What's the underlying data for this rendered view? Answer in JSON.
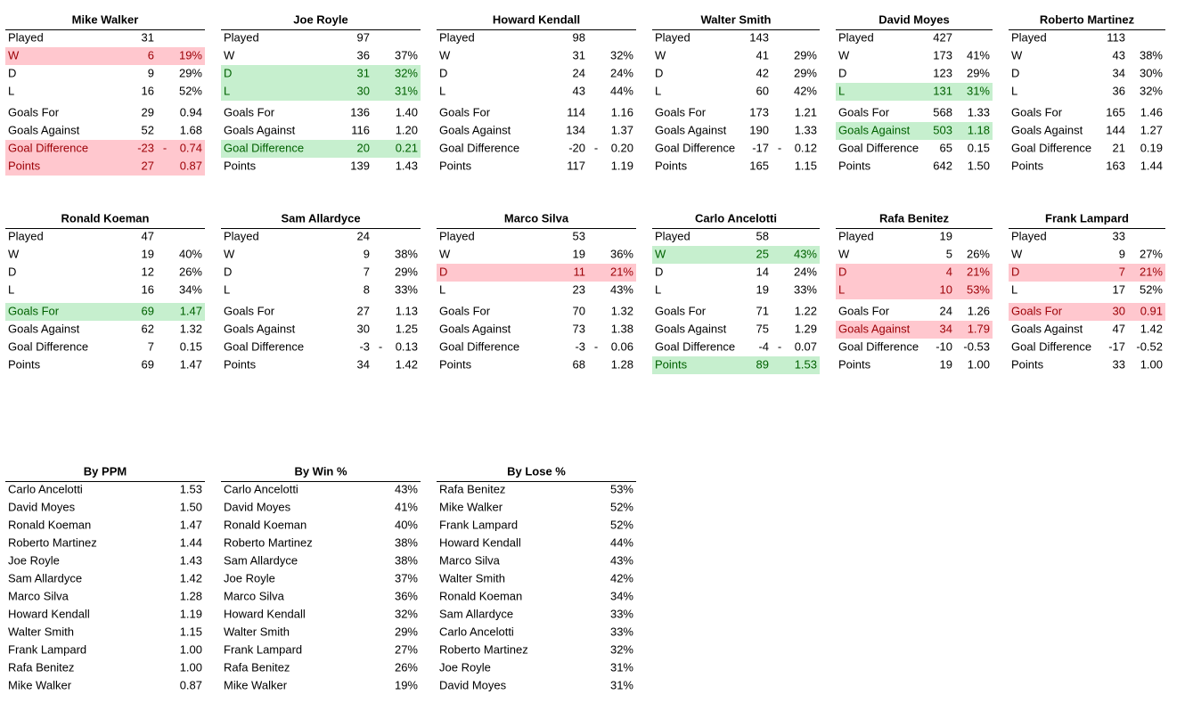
{
  "managers": [
    {
      "name": "Mike Walker",
      "rows": [
        {
          "cells": [
            "Played",
            "31"
          ]
        },
        {
          "cells": [
            "W",
            "6",
            "19%"
          ],
          "fill": "#ffc7ce",
          "text_color": "#9c0006"
        },
        {
          "cells": [
            "D",
            "9",
            "29%"
          ]
        },
        {
          "cells": [
            "L",
            "16",
            "52%"
          ]
        },
        {
          "cells": [
            "Goals For",
            "29",
            "0.94"
          ]
        },
        {
          "cells": [
            "Goals Against",
            "52",
            "1.68"
          ]
        },
        {
          "cells": [
            "Goal Difference",
            "-23",
            "-    0.74"
          ],
          "fill": "#ffc7ce",
          "text_color": "#9c0006"
        },
        {
          "cells": [
            "Points",
            "27",
            "0.87"
          ],
          "fill": "#ffc7ce",
          "text_color": "#9c0006"
        }
      ]
    },
    {
      "name": "Joe Royle",
      "rows": [
        {
          "cells": [
            "Played",
            "97"
          ]
        },
        {
          "cells": [
            "W",
            "36",
            "37%"
          ]
        },
        {
          "cells": [
            "D",
            "31",
            "32%"
          ],
          "fill": "#c6efce",
          "text_color": "#006100"
        },
        {
          "cells": [
            "L",
            "30",
            "31%"
          ],
          "fill": "#c6efce",
          "text_color": "#006100"
        },
        {
          "cells": [
            "Goals For",
            "136",
            "1.40"
          ]
        },
        {
          "cells": [
            "Goals Against",
            "116",
            "1.20"
          ]
        },
        {
          "cells": [
            "Goal Difference",
            "20",
            "0.21"
          ],
          "fill": "#c6efce",
          "text_color": "#006100"
        },
        {
          "cells": [
            "Points",
            "139",
            "1.43"
          ]
        }
      ]
    },
    {
      "name": "Howard Kendall",
      "rows": [
        {
          "cells": [
            "Played",
            "98"
          ]
        },
        {
          "cells": [
            "W",
            "31",
            "32%"
          ]
        },
        {
          "cells": [
            "D",
            "24",
            "24%"
          ]
        },
        {
          "cells": [
            "L",
            "43",
            "44%"
          ]
        },
        {
          "cells": [
            "Goals For",
            "114",
            "1.16"
          ]
        },
        {
          "cells": [
            "Goals Against",
            "134",
            "1.37"
          ]
        },
        {
          "cells": [
            "Goal Difference",
            "-20",
            "-    0.20"
          ]
        },
        {
          "cells": [
            "Points",
            "117",
            "1.19"
          ]
        }
      ]
    },
    {
      "name": "Walter Smith",
      "rows": [
        {
          "cells": [
            "Played",
            "143"
          ]
        },
        {
          "cells": [
            "W",
            "41",
            "29%"
          ]
        },
        {
          "cells": [
            "D",
            "42",
            "29%"
          ]
        },
        {
          "cells": [
            "L",
            "60",
            "42%"
          ]
        },
        {
          "cells": [
            "Goals For",
            "173",
            "1.21"
          ]
        },
        {
          "cells": [
            "Goals Against",
            "190",
            "1.33"
          ]
        },
        {
          "cells": [
            "Goal Difference",
            "-17",
            "-    0.12"
          ]
        },
        {
          "cells": [
            "Points",
            "165",
            "1.15"
          ]
        }
      ]
    },
    {
      "name": "David Moyes",
      "rows": [
        {
          "cells": [
            "Played",
            "427"
          ]
        },
        {
          "cells": [
            "W",
            "173",
            "41%"
          ]
        },
        {
          "cells": [
            "D",
            "123",
            "29%"
          ]
        },
        {
          "cells": [
            "L",
            "131",
            "31%"
          ],
          "fill": "#c6efce",
          "text_color": "#006100"
        },
        {
          "cells": [
            "Goals For",
            "568",
            "1.33"
          ]
        },
        {
          "cells": [
            "Goals Against",
            "503",
            "1.18"
          ],
          "fill": "#c6efce",
          "text_color": "#006100"
        },
        {
          "cells": [
            "Goal Difference",
            "65",
            "0.15"
          ]
        },
        {
          "cells": [
            "Points",
            "642",
            "1.50"
          ]
        }
      ]
    },
    {
      "name": "Roberto Martinez",
      "rows": [
        {
          "cells": [
            "Played",
            "113"
          ]
        },
        {
          "cells": [
            "W",
            "43",
            "38%"
          ]
        },
        {
          "cells": [
            "D",
            "34",
            "30%"
          ]
        },
        {
          "cells": [
            "L",
            "36",
            "32%"
          ]
        },
        {
          "cells": [
            "Goals For",
            "165",
            "1.46"
          ]
        },
        {
          "cells": [
            "Goals Against",
            "144",
            "1.27"
          ]
        },
        {
          "cells": [
            "Goal Difference",
            "21",
            "0.19"
          ]
        },
        {
          "cells": [
            "Points",
            "163",
            "1.44"
          ]
        }
      ]
    },
    {
      "name": "Ronald Koeman",
      "rows": [
        {
          "cells": [
            "Played",
            "47"
          ]
        },
        {
          "cells": [
            "W",
            "19",
            "40%"
          ]
        },
        {
          "cells": [
            "D",
            "12",
            "26%"
          ]
        },
        {
          "cells": [
            "L",
            "16",
            "34%"
          ]
        },
        {
          "cells": [
            "Goals For",
            "69",
            "1.47"
          ],
          "fill": "#c6efce",
          "text_color": "#006100"
        },
        {
          "cells": [
            "Goals Against",
            "62",
            "1.32"
          ]
        },
        {
          "cells": [
            "Goal Difference",
            "7",
            "0.15"
          ]
        },
        {
          "cells": [
            "Points",
            "69",
            "1.47"
          ]
        }
      ]
    },
    {
      "name": "Sam Allardyce",
      "rows": [
        {
          "cells": [
            "Played",
            "24"
          ]
        },
        {
          "cells": [
            "W",
            "9",
            "38%"
          ]
        },
        {
          "cells": [
            "D",
            "7",
            "29%"
          ]
        },
        {
          "cells": [
            "L",
            "8",
            "33%"
          ]
        },
        {
          "cells": [
            "Goals For",
            "27",
            "1.13"
          ]
        },
        {
          "cells": [
            "Goals Against",
            "30",
            "1.25"
          ]
        },
        {
          "cells": [
            "Goal Difference",
            "-3",
            "-    0.13"
          ]
        },
        {
          "cells": [
            "Points",
            "34",
            "1.42"
          ]
        }
      ]
    },
    {
      "name": "Marco Silva",
      "rows": [
        {
          "cells": [
            "Played",
            "53"
          ]
        },
        {
          "cells": [
            "W",
            "19",
            "36%"
          ]
        },
        {
          "cells": [
            "D",
            "11",
            "21%"
          ],
          "fill": "#ffc7ce",
          "text_color": "#9c0006"
        },
        {
          "cells": [
            "L",
            "23",
            "43%"
          ]
        },
        {
          "cells": [
            "Goals For",
            "70",
            "1.32"
          ]
        },
        {
          "cells": [
            "Goals Against",
            "73",
            "1.38"
          ]
        },
        {
          "cells": [
            "Goal Difference",
            "-3",
            "-    0.06"
          ]
        },
        {
          "cells": [
            "Points",
            "68",
            "1.28"
          ]
        }
      ]
    },
    {
      "name": "Carlo Ancelotti",
      "rows": [
        {
          "cells": [
            "Played",
            "58"
          ]
        },
        {
          "cells": [
            "W",
            "25",
            "43%"
          ],
          "fill": "#c6efce",
          "text_color": "#006100"
        },
        {
          "cells": [
            "D",
            "14",
            "24%"
          ]
        },
        {
          "cells": [
            "L",
            "19",
            "33%"
          ]
        },
        {
          "cells": [
            "Goals For",
            "71",
            "1.22"
          ]
        },
        {
          "cells": [
            "Goals Against",
            "75",
            "1.29"
          ]
        },
        {
          "cells": [
            "Goal Difference",
            "-4",
            "-    0.07"
          ]
        },
        {
          "cells": [
            "Points",
            "89",
            "1.53"
          ],
          "fill": "#c6efce",
          "text_color": "#006100"
        }
      ]
    },
    {
      "name": "Rafa Benitez",
      "rows": [
        {
          "cells": [
            "Played",
            "19"
          ]
        },
        {
          "cells": [
            "W",
            "5",
            "26%"
          ]
        },
        {
          "cells": [
            "D",
            "4",
            "21%"
          ],
          "fill": "#ffc7ce",
          "text_color": "#9c0006"
        },
        {
          "cells": [
            "L",
            "10",
            "53%"
          ],
          "fill": "#ffc7ce",
          "text_color": "#9c0006"
        },
        {
          "cells": [
            "Goals For",
            "24",
            "1.26"
          ]
        },
        {
          "cells": [
            "Goals Against",
            "34",
            "1.79"
          ],
          "fill": "#ffc7ce",
          "text_color": "#9c0006"
        },
        {
          "cells": [
            "Goal Difference",
            "-10",
            "-0.53"
          ]
        },
        {
          "cells": [
            "Points",
            "19",
            "1.00"
          ]
        }
      ]
    },
    {
      "name": "Frank Lampard",
      "rows": [
        {
          "cells": [
            "Played",
            "33"
          ]
        },
        {
          "cells": [
            "W",
            "9",
            "27%"
          ]
        },
        {
          "cells": [
            "D",
            "7",
            "21%"
          ],
          "fill": "#ffc7ce",
          "text_color": "#9c0006"
        },
        {
          "cells": [
            "L",
            "17",
            "52%"
          ]
        },
        {
          "cells": [
            "Goals For",
            "30",
            "0.91"
          ],
          "fill": "#ffc7ce",
          "text_color": "#9c0006"
        },
        {
          "cells": [
            "Goals Against",
            "47",
            "1.42"
          ]
        },
        {
          "cells": [
            "Goal Difference",
            "-17",
            "-0.52"
          ]
        },
        {
          "cells": [
            "Points",
            "33",
            "1.00"
          ]
        }
      ]
    }
  ],
  "rankings": [
    {
      "title": "By PPM",
      "rows": [
        [
          "Carlo Ancelotti",
          "1.53"
        ],
        [
          "David Moyes",
          "1.50"
        ],
        [
          "Ronald Koeman",
          "1.47"
        ],
        [
          "Roberto Martinez",
          "1.44"
        ],
        [
          "Joe Royle",
          "1.43"
        ],
        [
          "Sam Allardyce",
          "1.42"
        ],
        [
          "Marco Silva",
          "1.28"
        ],
        [
          "Howard Kendall",
          "1.19"
        ],
        [
          "Walter Smith",
          "1.15"
        ],
        [
          "Frank Lampard",
          "1.00"
        ],
        [
          "Rafa Benitez",
          "1.00"
        ],
        [
          "Mike Walker",
          "0.87"
        ]
      ]
    },
    {
      "title": "By Win %",
      "rows": [
        [
          "Carlo Ancelotti",
          "43%"
        ],
        [
          "David Moyes",
          "41%"
        ],
        [
          "Ronald Koeman",
          "40%"
        ],
        [
          "Roberto Martinez",
          "38%"
        ],
        [
          "Sam Allardyce",
          "38%"
        ],
        [
          "Joe Royle",
          "37%"
        ],
        [
          "Marco Silva",
          "36%"
        ],
        [
          "Howard Kendall",
          "32%"
        ],
        [
          "Walter Smith",
          "29%"
        ],
        [
          "Frank Lampard",
          "27%"
        ],
        [
          "Rafa Benitez",
          "26%"
        ],
        [
          "Mike Walker",
          "19%"
        ]
      ]
    },
    {
      "title": "By Lose %",
      "rows": [
        [
          "Rafa Benitez",
          "53%"
        ],
        [
          "Mike Walker",
          "52%"
        ],
        [
          "Frank Lampard",
          "52%"
        ],
        [
          "Howard Kendall",
          "44%"
        ],
        [
          "Marco Silva",
          "43%"
        ],
        [
          "Walter Smith",
          "42%"
        ],
        [
          "Ronald Koeman",
          "34%"
        ],
        [
          "Sam Allardyce",
          "33%"
        ],
        [
          "Carlo Ancelotti",
          "33%"
        ],
        [
          "Roberto Martinez",
          "32%"
        ],
        [
          "Joe Royle",
          "31%"
        ],
        [
          "David Moyes",
          "31%"
        ]
      ]
    }
  ]
}
